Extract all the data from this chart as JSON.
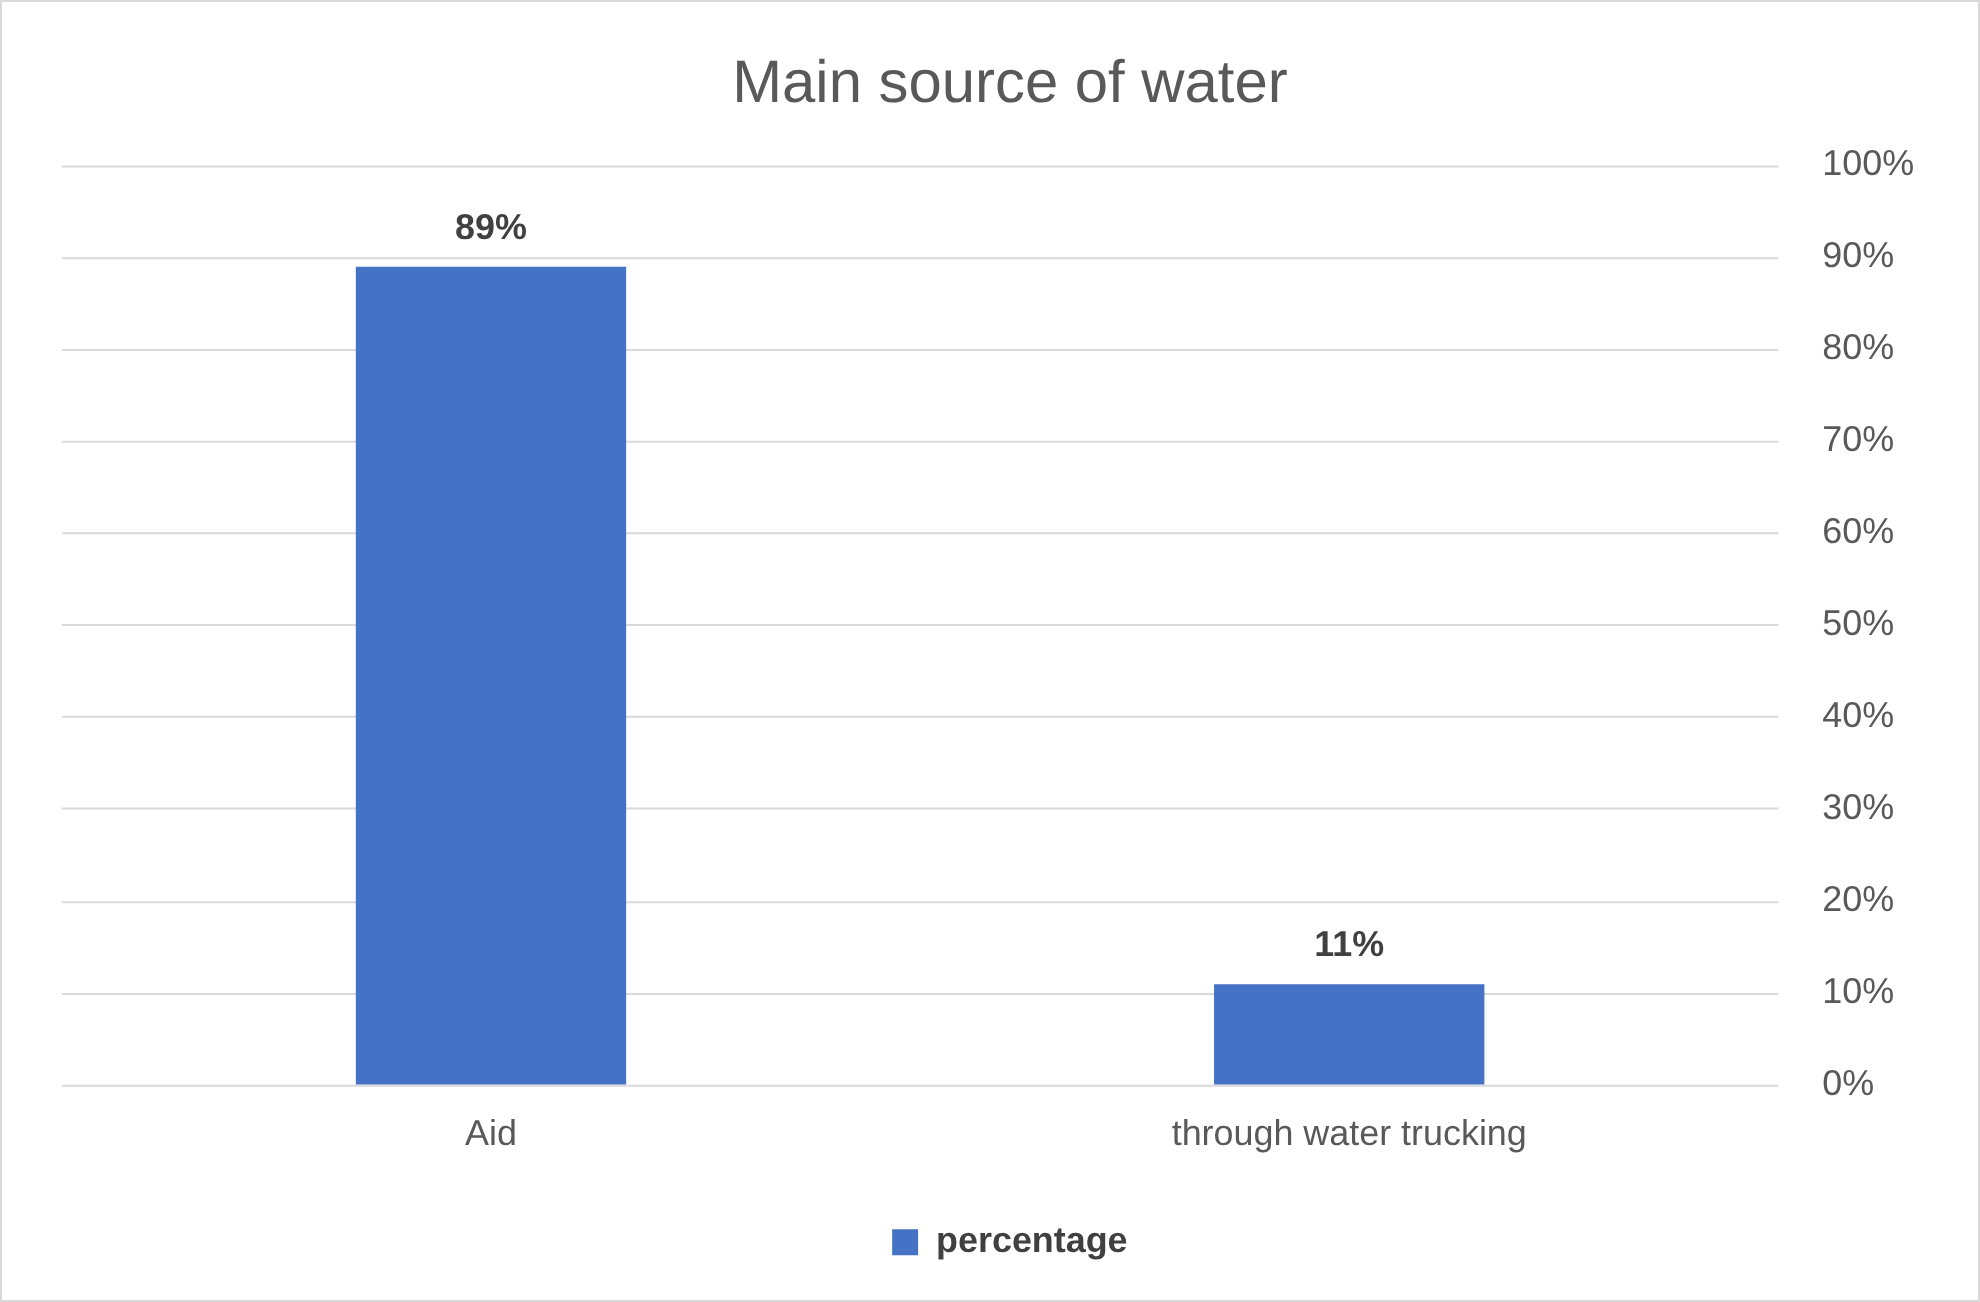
{
  "chart_data": {
    "type": "bar",
    "title": "Main source of water",
    "categories": [
      "Aid",
      "through water trucking"
    ],
    "series": [
      {
        "name": "percentage",
        "color": "#4472c4",
        "values": [
          89,
          11
        ],
        "value_labels": [
          "89%",
          "11%"
        ]
      }
    ],
    "ylim": [
      0,
      100
    ],
    "yticks": [
      {
        "value": 0,
        "label": "0%"
      },
      {
        "value": 10,
        "label": "10%"
      },
      {
        "value": 20,
        "label": "20%"
      },
      {
        "value": 30,
        "label": "30%"
      },
      {
        "value": 40,
        "label": "40%"
      },
      {
        "value": 50,
        "label": "50%"
      },
      {
        "value": 60,
        "label": "60%"
      },
      {
        "value": 70,
        "label": "70%"
      },
      {
        "value": 80,
        "label": "80%"
      },
      {
        "value": 90,
        "label": "90%"
      },
      {
        "value": 100,
        "label": "100%"
      }
    ],
    "grid": "y",
    "legend": "bottom"
  }
}
